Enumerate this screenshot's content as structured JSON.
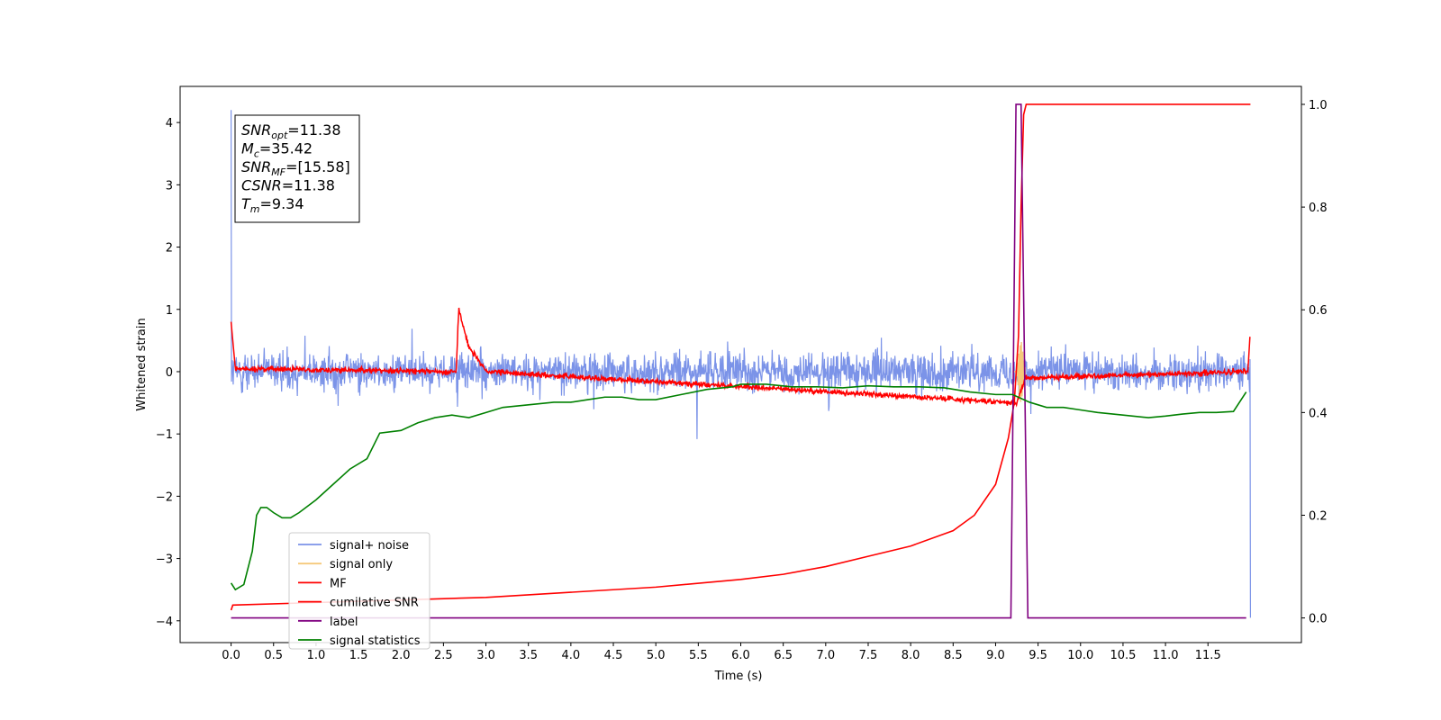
{
  "chart_data": {
    "type": "line",
    "title": "",
    "xlabel": "Time (s)",
    "ylabel": "Whitened strain",
    "xlim": [
      -0.6,
      12.6
    ],
    "ylim": [
      -4.35,
      4.58
    ],
    "ylim_right": [
      -0.048,
      1.035
    ],
    "grid": false,
    "legend_position": "lower-left",
    "xticks": [
      "0.0",
      "0.5",
      "1.0",
      "1.5",
      "2.0",
      "2.5",
      "3.0",
      "3.5",
      "4.0",
      "4.5",
      "5.0",
      "5.5",
      "6.0",
      "6.5",
      "7.0",
      "7.5",
      "8.0",
      "8.5",
      "9.0",
      "9.5",
      "10.0",
      "10.5",
      "11.0",
      "11.5"
    ],
    "yticks_left": [
      "−4",
      "−3",
      "−2",
      "−1",
      "0",
      "1",
      "2",
      "3",
      "4"
    ],
    "yticks_right": [
      "0.0",
      "0.2",
      "0.4",
      "0.6",
      "0.8",
      "1.0"
    ],
    "annotation": [
      {
        "base": "SNR",
        "sub": "opt",
        "value": "=11.38"
      },
      {
        "base": "M",
        "sub": "c",
        "value": "=35.42"
      },
      {
        "base": "SNR",
        "sub": "MF",
        "value": "=[15.58]"
      },
      {
        "base": "CSNR",
        "sub": "",
        "value": "=11.38"
      },
      {
        "base": "T",
        "sub": "m",
        "value": "=9.34"
      }
    ],
    "series": [
      {
        "name": "signal+ noise",
        "color": "#7b93e8",
        "axis": "left",
        "noise_amplitude": 0.3,
        "x_range": [
          0.0,
          12.0
        ],
        "spike_start": 4.2,
        "spike_end": -3.95
      },
      {
        "name": "signal only",
        "color": "#f5c97a",
        "axis": "left",
        "x_range": [
          9.2,
          9.35
        ],
        "peak_window": [
          9.25,
          9.35
        ]
      },
      {
        "name": "MF",
        "color": "#ff0000",
        "axis": "left",
        "baseline": 0.0,
        "noise_amplitude": 0.05,
        "points": [
          [
            0.0,
            0.8
          ],
          [
            0.05,
            0.05
          ],
          [
            2.65,
            0.0
          ],
          [
            2.68,
            1.0
          ],
          [
            2.8,
            0.4
          ],
          [
            3.0,
            0.0
          ],
          [
            9.25,
            -0.5
          ],
          [
            9.35,
            -0.1
          ],
          [
            11.97,
            0.0
          ],
          [
            12.0,
            0.7
          ]
        ]
      },
      {
        "name": "cumilative SNR",
        "color": "#ff0000",
        "axis": "right",
        "points": [
          [
            0.0,
            0.015
          ],
          [
            0.02,
            0.025
          ],
          [
            1.0,
            0.03
          ],
          [
            2.0,
            0.035
          ],
          [
            3.0,
            0.04
          ],
          [
            4.0,
            0.05
          ],
          [
            5.0,
            0.06
          ],
          [
            6.0,
            0.075
          ],
          [
            6.5,
            0.085
          ],
          [
            7.0,
            0.1
          ],
          [
            7.5,
            0.12
          ],
          [
            8.0,
            0.14
          ],
          [
            8.5,
            0.17
          ],
          [
            8.75,
            0.2
          ],
          [
            9.0,
            0.26
          ],
          [
            9.15,
            0.35
          ],
          [
            9.22,
            0.42
          ],
          [
            9.27,
            0.55
          ],
          [
            9.3,
            0.8
          ],
          [
            9.33,
            0.98
          ],
          [
            9.36,
            1.0
          ],
          [
            12.0,
            1.0
          ]
        ]
      },
      {
        "name": "label",
        "color": "#800080",
        "axis": "right",
        "points": [
          [
            0.0,
            0.0
          ],
          [
            9.18,
            0.0
          ],
          [
            9.24,
            1.0
          ],
          [
            9.3,
            1.0
          ],
          [
            9.38,
            0.0
          ],
          [
            11.95,
            0.0
          ]
        ]
      },
      {
        "name": "signal statistics",
        "color": "#008000",
        "axis": "right",
        "points": [
          [
            0.0,
            0.068
          ],
          [
            0.05,
            0.055
          ],
          [
            0.15,
            0.065
          ],
          [
            0.25,
            0.13
          ],
          [
            0.3,
            0.2
          ],
          [
            0.35,
            0.215
          ],
          [
            0.42,
            0.215
          ],
          [
            0.5,
            0.205
          ],
          [
            0.6,
            0.195
          ],
          [
            0.7,
            0.195
          ],
          [
            0.8,
            0.205
          ],
          [
            1.0,
            0.23
          ],
          [
            1.2,
            0.26
          ],
          [
            1.4,
            0.29
          ],
          [
            1.6,
            0.31
          ],
          [
            1.75,
            0.36
          ],
          [
            2.0,
            0.365
          ],
          [
            2.2,
            0.38
          ],
          [
            2.4,
            0.39
          ],
          [
            2.6,
            0.395
          ],
          [
            2.8,
            0.39
          ],
          [
            3.0,
            0.4
          ],
          [
            3.2,
            0.41
          ],
          [
            3.5,
            0.415
          ],
          [
            3.8,
            0.42
          ],
          [
            4.0,
            0.42
          ],
          [
            4.2,
            0.425
          ],
          [
            4.4,
            0.43
          ],
          [
            4.6,
            0.43
          ],
          [
            4.8,
            0.425
          ],
          [
            5.0,
            0.425
          ],
          [
            5.3,
            0.435
          ],
          [
            5.6,
            0.445
          ],
          [
            5.9,
            0.45
          ],
          [
            6.0,
            0.455
          ],
          [
            6.3,
            0.455
          ],
          [
            6.6,
            0.45
          ],
          [
            6.9,
            0.45
          ],
          [
            7.2,
            0.448
          ],
          [
            7.5,
            0.452
          ],
          [
            7.8,
            0.45
          ],
          [
            8.1,
            0.45
          ],
          [
            8.4,
            0.448
          ],
          [
            8.7,
            0.44
          ],
          [
            9.0,
            0.435
          ],
          [
            9.2,
            0.435
          ],
          [
            9.4,
            0.42
          ],
          [
            9.6,
            0.41
          ],
          [
            9.8,
            0.41
          ],
          [
            10.0,
            0.405
          ],
          [
            10.2,
            0.4
          ],
          [
            10.5,
            0.395
          ],
          [
            10.8,
            0.39
          ],
          [
            11.0,
            0.393
          ],
          [
            11.2,
            0.397
          ],
          [
            11.4,
            0.4
          ],
          [
            11.6,
            0.4
          ],
          [
            11.8,
            0.402
          ],
          [
            11.95,
            0.44
          ]
        ]
      }
    ]
  }
}
